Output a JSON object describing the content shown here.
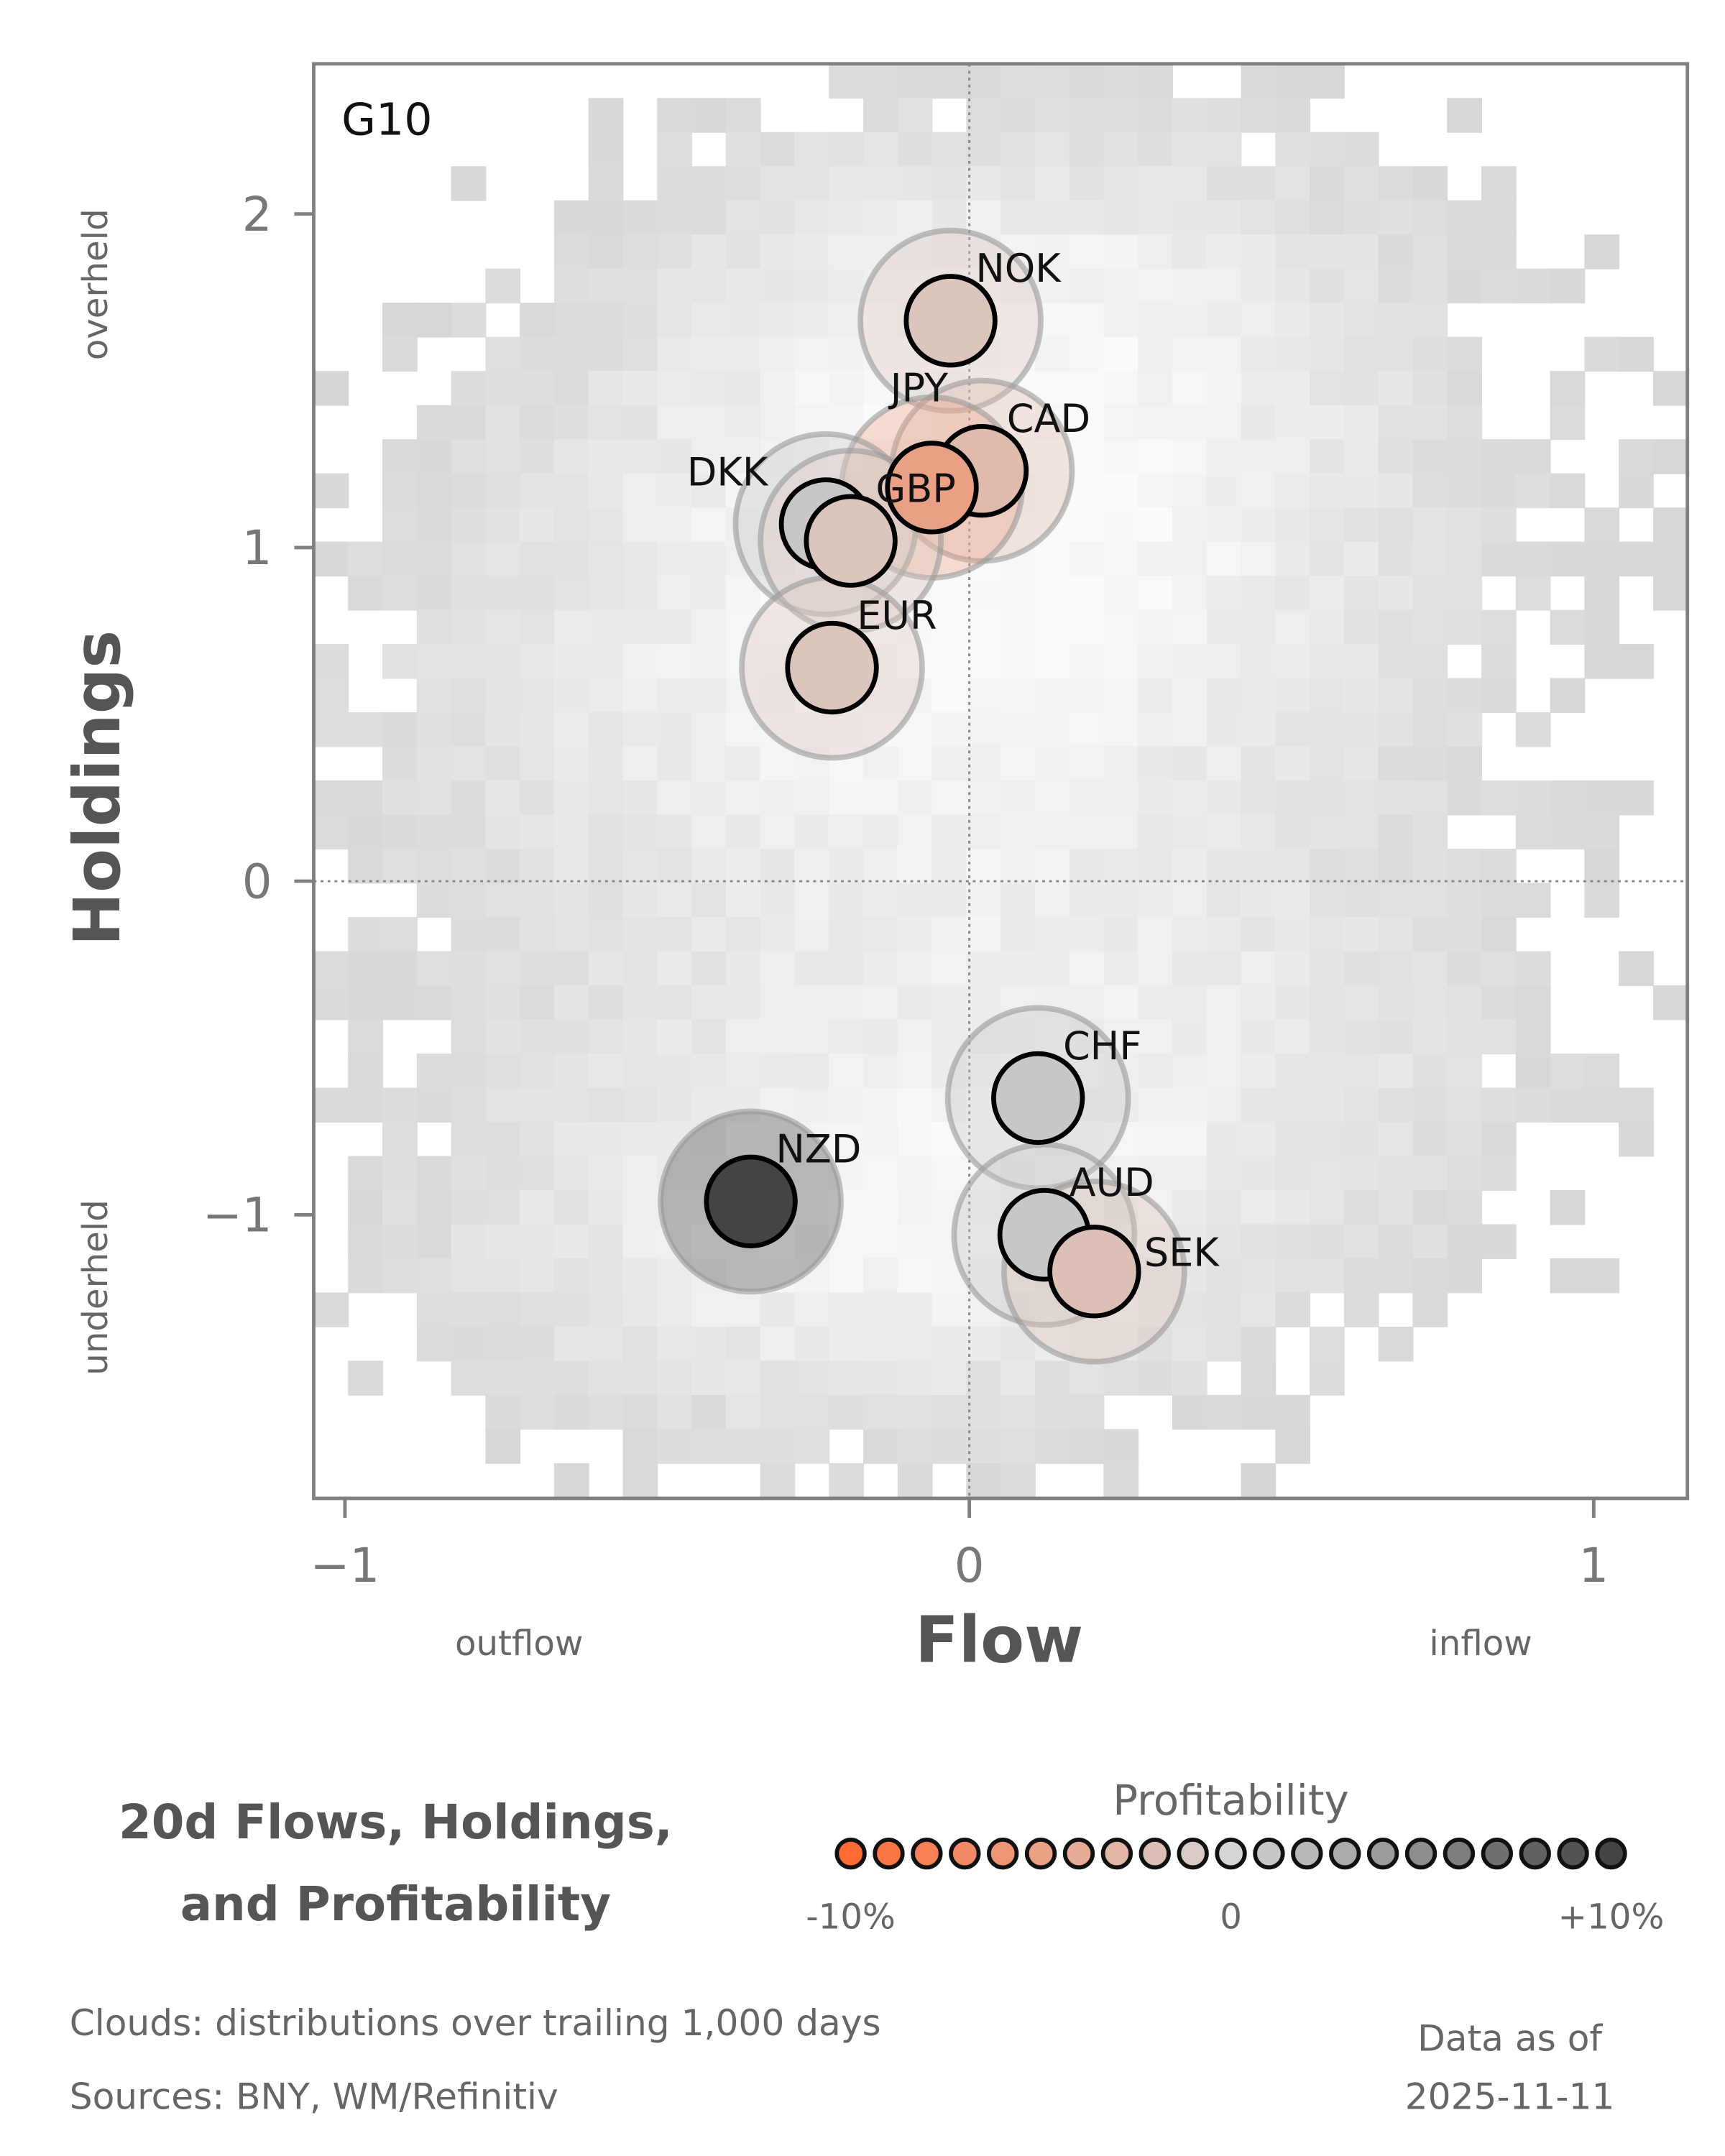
{
  "chart_data": {
    "type": "scatter",
    "panel_label": "G10",
    "xlabel": "Flow",
    "ylabel": "Holdings",
    "x_side_labels": {
      "left": "outflow",
      "right": "inflow"
    },
    "y_side_labels": {
      "top": "overheld",
      "bottom": "underheld"
    },
    "xlim": [
      -1.05,
      1.15
    ],
    "ylim": [
      -1.85,
      2.45
    ],
    "xticks": [
      {
        "v": -1,
        "label": "−1"
      },
      {
        "v": 0,
        "label": "0"
      },
      {
        "v": 1,
        "label": "1"
      }
    ],
    "yticks": [
      {
        "v": 2,
        "label": "2"
      },
      {
        "v": 1,
        "label": "1"
      },
      {
        "v": 0,
        "label": "0"
      },
      {
        "v": -1,
        "label": "−1"
      }
    ],
    "reference_lines": {
      "x": 0,
      "y": 0
    },
    "background": "heatmap clouds (distributions over trailing 1,000 days)",
    "points": [
      {
        "name": "NOK",
        "flow": -0.03,
        "holdings": 1.68,
        "profitability": -1.5
      },
      {
        "name": "CAD",
        "flow": 0.02,
        "holdings": 1.23,
        "profitability": -2.5
      },
      {
        "name": "JPY",
        "flow": -0.06,
        "holdings": 1.18,
        "profitability": -5
      },
      {
        "name": "DKK",
        "flow": -0.23,
        "holdings": 1.07,
        "profitability": 1
      },
      {
        "name": "GBP",
        "flow": -0.19,
        "holdings": 1.02,
        "profitability": -1.5
      },
      {
        "name": "EUR",
        "flow": -0.22,
        "holdings": 0.64,
        "profitability": -1.5
      },
      {
        "name": "CHF",
        "flow": 0.11,
        "holdings": -0.65,
        "profitability": 1
      },
      {
        "name": "AUD",
        "flow": 0.12,
        "holdings": -1.06,
        "profitability": 1
      },
      {
        "name": "SEK",
        "flow": 0.2,
        "holdings": -1.17,
        "profitability": -2
      },
      {
        "name": "NZD",
        "flow": -0.35,
        "holdings": -0.96,
        "profitability": 10
      }
    ],
    "color_legend": {
      "title": "Profitability",
      "min": -10,
      "max": 10,
      "steps": 21,
      "labels": {
        "min": "-10%",
        "mid": "0",
        "max": "+10%"
      },
      "colors": {
        "negative": "#ff6b35",
        "zero": "#d5d5d5",
        "positive": "#444444"
      }
    }
  },
  "title": {
    "line1": "20d Flows, Holdings,",
    "line2": "and Profitability"
  },
  "footer": {
    "clouds": "Clouds:  distributions over trailing 1,000 days",
    "sources": "Sources:  BNY, WM/Refinitiv",
    "asof_label": "Data as of",
    "asof_date": "2025-11-11"
  }
}
